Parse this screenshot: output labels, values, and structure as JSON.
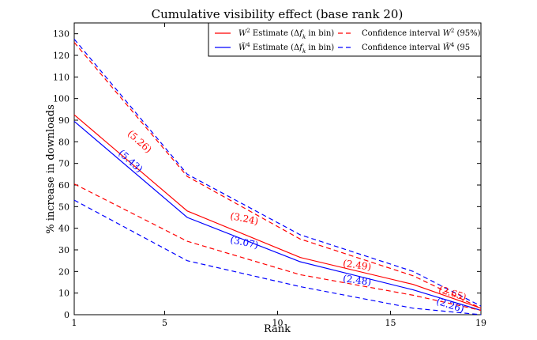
{
  "chart_data": {
    "type": "line",
    "title": "Cumulative visibility effect (base rank 20)",
    "xlabel": "Rank",
    "ylabel": "% increase in downloads",
    "xlim": [
      1,
      19
    ],
    "ylim": [
      0,
      135
    ],
    "xticks": [
      "1",
      "5",
      "10",
      "15",
      "19"
    ],
    "yticks": [
      "0",
      "10",
      "20",
      "30",
      "40",
      "50",
      "60",
      "70",
      "80",
      "90",
      "100",
      "110",
      "120",
      "130"
    ],
    "grid": false,
    "legend_placement": "top-right",
    "colors": {
      "red": "#ff0000",
      "blue": "#0000ff"
    },
    "series": [
      {
        "name": "W² Estimate (Δf_k in bin)",
        "color": "#ff0000",
        "style": "solid",
        "x": [
          1,
          6,
          11,
          16,
          19
        ],
        "values": [
          92.5,
          48,
          26.5,
          14,
          3
        ]
      },
      {
        "name": "W̃⁴ Estimate (Δf_k in bin)",
        "color": "#0000ff",
        "style": "solid",
        "x": [
          1,
          6,
          11,
          16,
          19
        ],
        "values": [
          89.5,
          45,
          24.5,
          11.5,
          2
        ]
      },
      {
        "name": "Confidence interval W² (95%)",
        "color": "#ff0000",
        "style": "dashed",
        "x": [
          1,
          6,
          11,
          16,
          19
        ],
        "values": [
          126,
          64,
          35,
          18,
          3
        ]
      },
      {
        "name": "",
        "color": "#ff0000",
        "style": "dashed",
        "x": [
          1,
          6,
          11,
          16,
          19
        ],
        "values": [
          60.5,
          34,
          18.5,
          9,
          2
        ]
      },
      {
        "name": "Confidence interval W̃⁴ (95",
        "color": "#0000ff",
        "style": "dashed",
        "x": [
          1,
          6,
          11,
          16,
          19
        ],
        "values": [
          127.5,
          65,
          37,
          20,
          4
        ]
      },
      {
        "name": "",
        "color": "#0000ff",
        "style": "dashed",
        "x": [
          1,
          6,
          11,
          16,
          19
        ],
        "values": [
          53,
          25,
          13,
          3,
          0
        ]
      }
    ],
    "annotations": [
      {
        "text": "(5.26)",
        "x": 3.8,
        "y": 79,
        "color": "#ff0000",
        "angle": 42
      },
      {
        "text": "(5.43)",
        "x": 3.4,
        "y": 70,
        "color": "#0000ff",
        "angle": 42
      },
      {
        "text": "(3.24)",
        "x": 8.5,
        "y": 43,
        "color": "#ff0000",
        "angle": 12
      },
      {
        "text": "(3.07)",
        "x": 8.5,
        "y": 32,
        "color": "#0000ff",
        "angle": 12
      },
      {
        "text": "(2.49)",
        "x": 13.5,
        "y": 21.5,
        "color": "#ff0000",
        "angle": 8
      },
      {
        "text": "(2.48)",
        "x": 13.5,
        "y": 14.5,
        "color": "#0000ff",
        "angle": 8
      },
      {
        "text": "(2.65)",
        "x": 17.7,
        "y": 8.5,
        "color": "#ff0000",
        "angle": 18
      },
      {
        "text": "(2.26)",
        "x": 17.6,
        "y": 3,
        "color": "#0000ff",
        "angle": 18
      }
    ]
  }
}
